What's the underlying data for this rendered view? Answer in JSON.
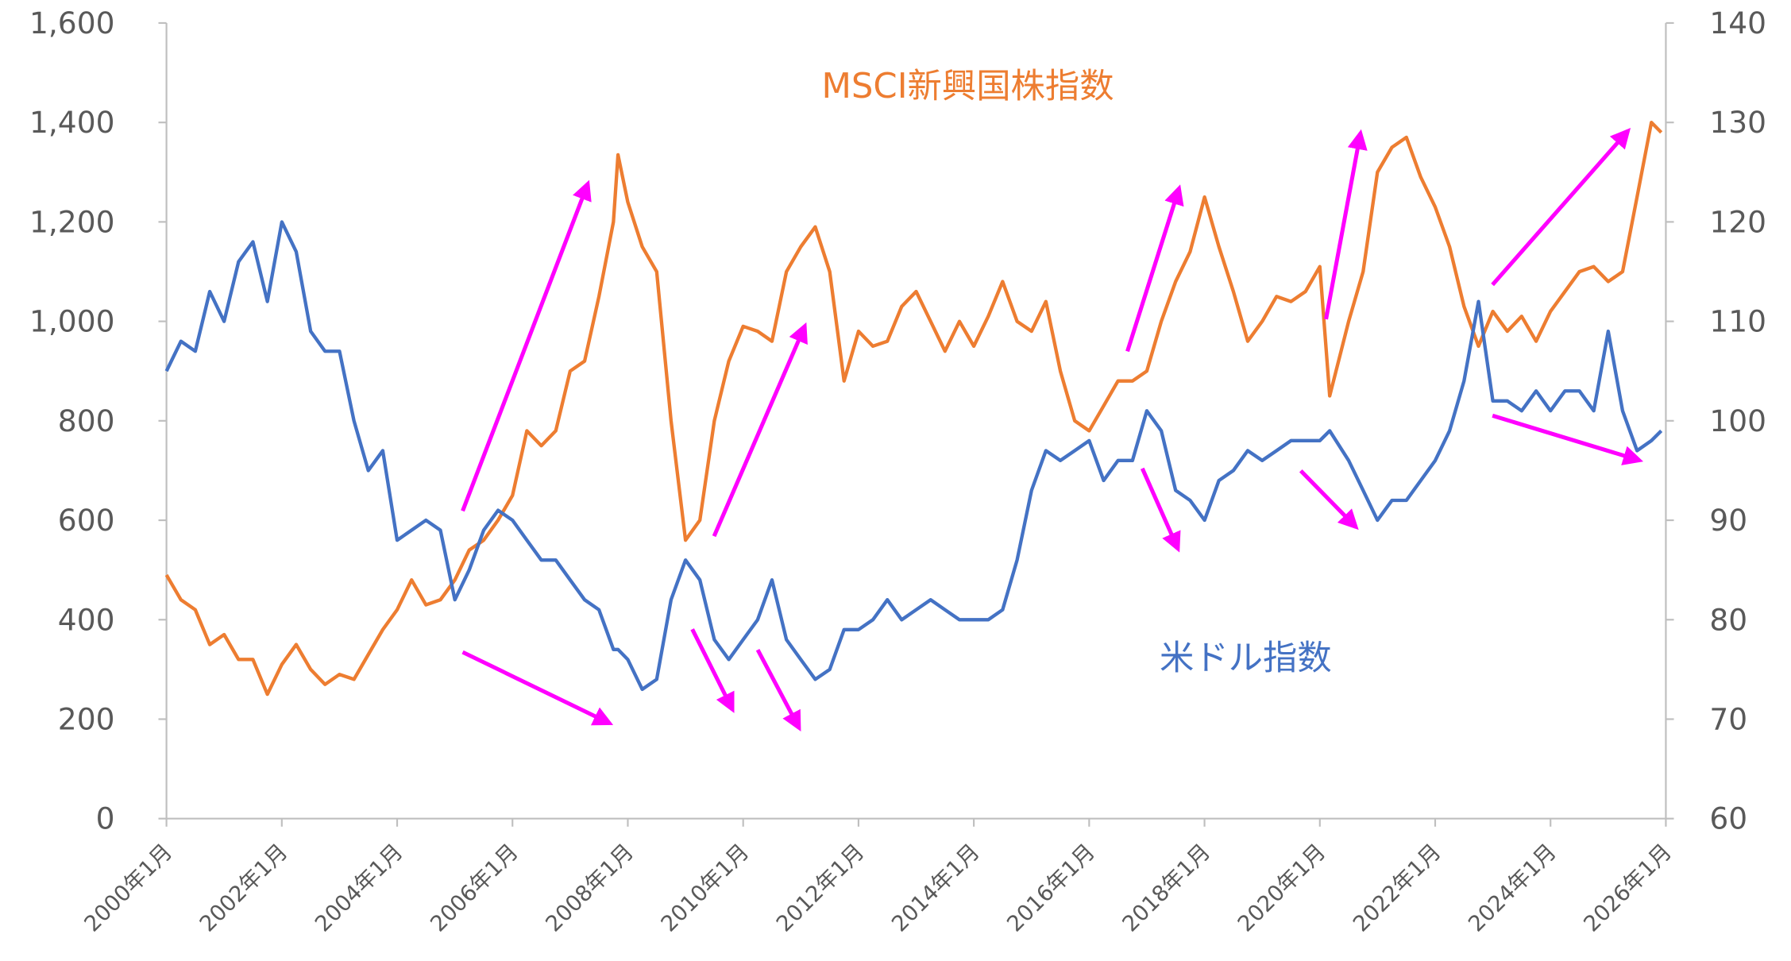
{
  "chart_data": {
    "type": "line",
    "x": [
      2000,
      2000.25,
      2000.5,
      2000.75,
      2001,
      2001.25,
      2001.5,
      2001.75,
      2002,
      2002.25,
      2002.5,
      2002.75,
      2003,
      2003.25,
      2003.5,
      2003.75,
      2004,
      2004.25,
      2004.5,
      2004.75,
      2005,
      2005.25,
      2005.5,
      2005.75,
      2006,
      2006.25,
      2006.5,
      2006.75,
      2007,
      2007.25,
      2007.5,
      2007.75,
      2007.83,
      2008,
      2008.25,
      2008.5,
      2008.75,
      2009,
      2009.25,
      2009.5,
      2009.75,
      2010,
      2010.25,
      2010.5,
      2010.75,
      2011,
      2011.25,
      2011.5,
      2011.75,
      2012,
      2012.25,
      2012.5,
      2012.75,
      2013,
      2013.25,
      2013.5,
      2013.75,
      2014,
      2014.25,
      2014.5,
      2014.75,
      2015,
      2015.25,
      2015.5,
      2015.75,
      2016,
      2016.25,
      2016.5,
      2016.75,
      2017,
      2017.25,
      2017.5,
      2017.75,
      2018,
      2018.25,
      2018.5,
      2018.75,
      2019,
      2019.25,
      2019.5,
      2019.75,
      2020,
      2020.17,
      2020.5,
      2020.75,
      2021,
      2021.25,
      2021.5,
      2021.75,
      2022,
      2022.25,
      2022.5,
      2022.75,
      2023,
      2023.25,
      2023.5,
      2023.75,
      2024,
      2024.25,
      2024.5,
      2024.75,
      2025,
      2025.25,
      2025.5,
      2025.75,
      2025.92
    ],
    "series": [
      {
        "name": "MSCI新興国株指数",
        "color": "#ed7d31",
        "axis": "y",
        "values": [
          490,
          440,
          420,
          350,
          370,
          320,
          320,
          250,
          310,
          350,
          300,
          270,
          290,
          280,
          330,
          380,
          420,
          480,
          430,
          440,
          480,
          540,
          560,
          600,
          650,
          780,
          750,
          780,
          900,
          920,
          1050,
          1200,
          1335,
          1240,
          1150,
          1100,
          800,
          560,
          600,
          800,
          920,
          990,
          980,
          960,
          1100,
          1150,
          1190,
          1100,
          880,
          980,
          950,
          960,
          1030,
          1060,
          1000,
          940,
          1000,
          950,
          1010,
          1080,
          1000,
          980,
          1040,
          900,
          800,
          780,
          830,
          880,
          880,
          900,
          1000,
          1080,
          1140,
          1250,
          1150,
          1060,
          960,
          1000,
          1050,
          1040,
          1060,
          1110,
          850,
          1000,
          1100,
          1300,
          1350,
          1370,
          1290,
          1230,
          1150,
          1030,
          950,
          1020,
          980,
          1010,
          960,
          1020,
          1060,
          1100,
          1110,
          1080,
          1100,
          1250,
          1400,
          1380
        ]
      },
      {
        "name": "米ドル指数",
        "color": "#4472c4",
        "axis": "y2",
        "values": [
          105,
          108,
          107,
          113,
          110,
          116,
          118,
          112,
          120,
          117,
          109,
          107,
          107,
          100,
          95,
          97,
          88,
          89,
          90,
          89,
          82,
          85,
          89,
          91,
          90,
          88,
          86,
          86,
          84,
          82,
          81,
          77,
          77,
          76,
          73,
          74,
          82,
          86,
          84,
          78,
          76,
          78,
          80,
          84,
          78,
          76,
          74,
          75,
          79,
          79,
          80,
          82,
          80,
          81,
          82,
          81,
          80,
          80,
          80,
          81,
          86,
          93,
          97,
          96,
          97,
          98,
          94,
          96,
          96,
          101,
          99,
          93,
          92,
          90,
          94,
          95,
          97,
          96,
          97,
          98,
          98,
          98,
          99,
          96,
          93,
          90,
          92,
          92,
          94,
          96,
          99,
          104,
          112,
          102,
          102,
          101,
          103,
          101,
          103,
          103,
          101,
          109,
          101,
          97,
          98,
          99
        ]
      }
    ],
    "xlim": [
      2000,
      2026
    ],
    "xticks": [
      {
        "value": 2000,
        "label": "2000年1月"
      },
      {
        "value": 2002,
        "label": "2002年1月"
      },
      {
        "value": 2004,
        "label": "2004年1月"
      },
      {
        "value": 2006,
        "label": "2006年1月"
      },
      {
        "value": 2008,
        "label": "2008年1月"
      },
      {
        "value": 2010,
        "label": "2010年1月"
      },
      {
        "value": 2012,
        "label": "2012年1月"
      },
      {
        "value": 2014,
        "label": "2014年1月"
      },
      {
        "value": 2016,
        "label": "2016年1月"
      },
      {
        "value": 2018,
        "label": "2018年1月"
      },
      {
        "value": 2020,
        "label": "2020年1月"
      },
      {
        "value": 2022,
        "label": "2022年1月"
      },
      {
        "value": 2024,
        "label": "2024年1月"
      },
      {
        "value": 2026,
        "label": "2026年1月"
      }
    ],
    "ylim": [
      0,
      1600
    ],
    "yticks": [
      0,
      200,
      400,
      600,
      800,
      {
        "value": 1000,
        "label": "1,000"
      },
      {
        "value": 1200,
        "label": "1,200"
      },
      {
        "value": 1400,
        "label": "1,400"
      },
      {
        "value": 1600,
        "label": "1,600"
      }
    ],
    "y2lim": [
      60,
      140
    ],
    "y2ticks": [
      60,
      70,
      80,
      90,
      100,
      110,
      120,
      130,
      140
    ]
  }
}
